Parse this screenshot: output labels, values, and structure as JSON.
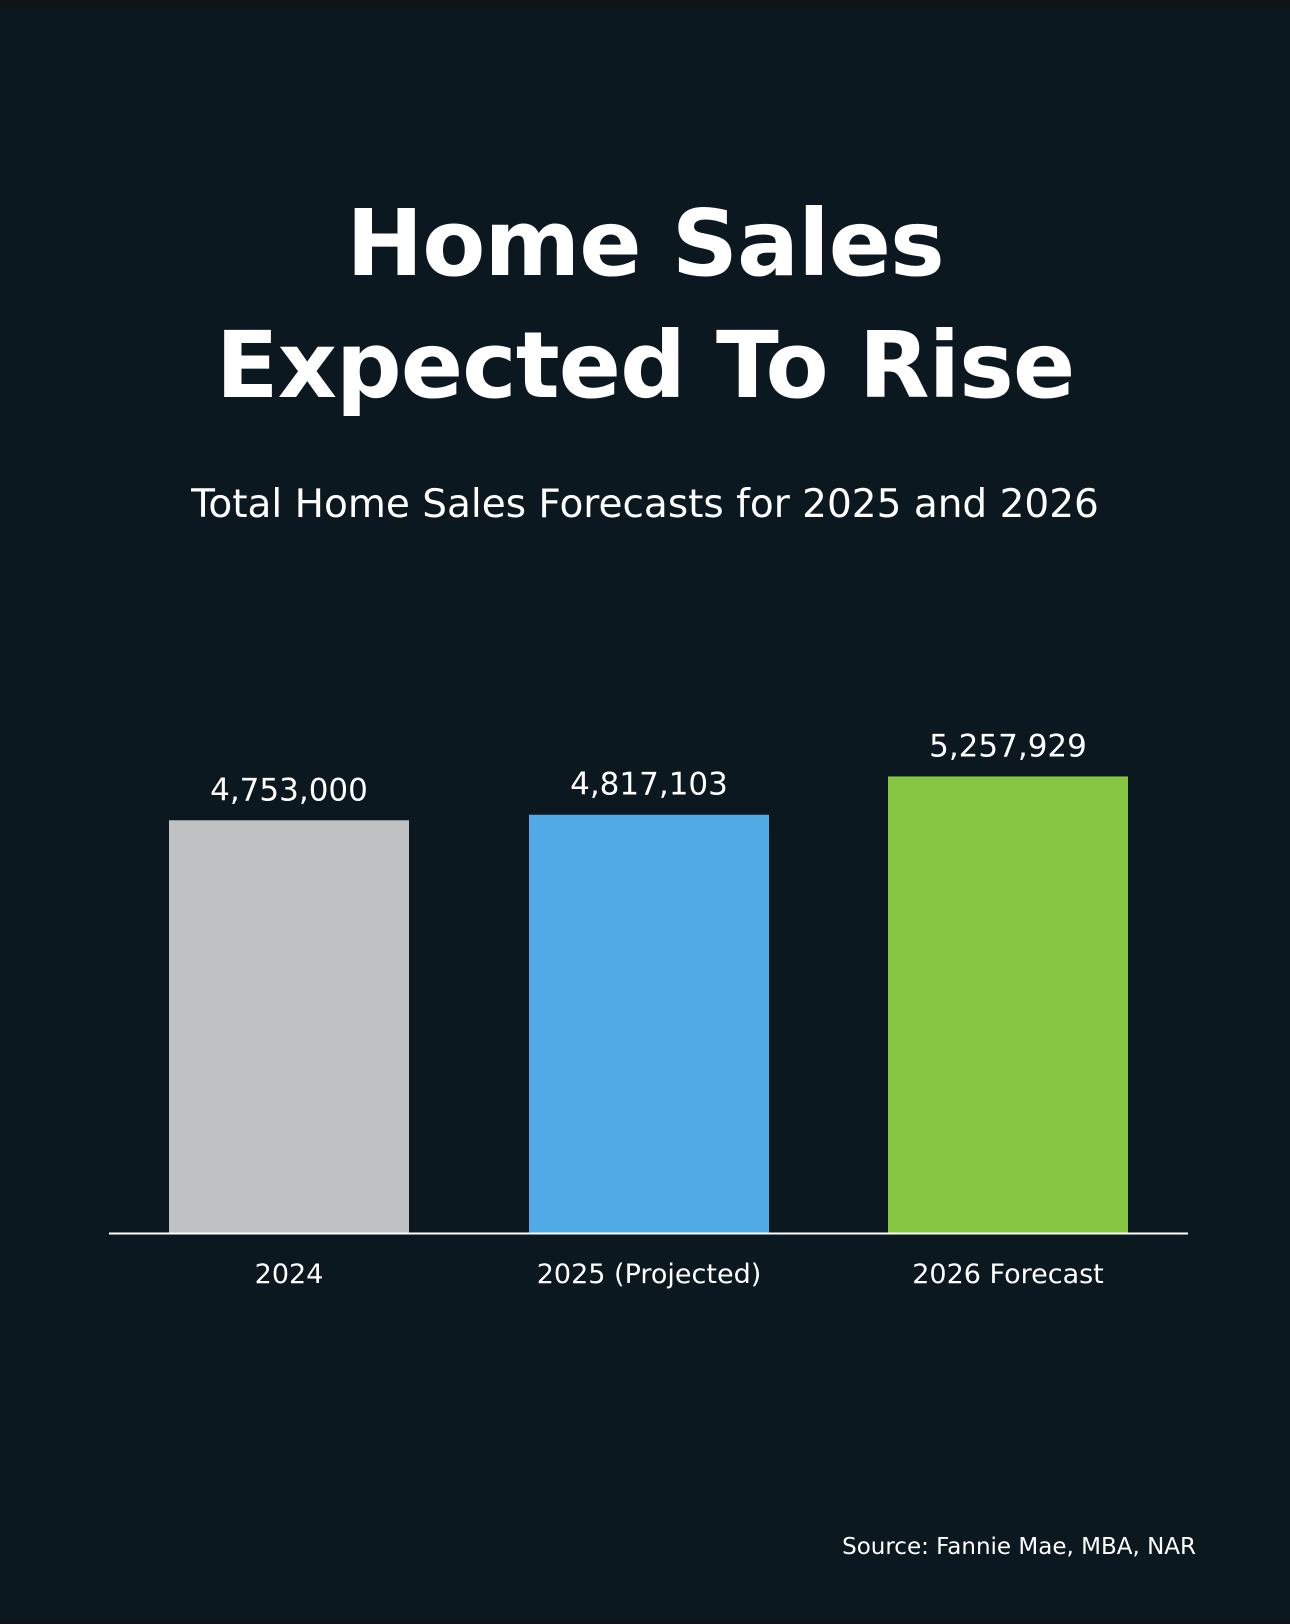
{
  "chart_data": {
    "type": "bar",
    "title": "Home Sales Expected To Rise",
    "title_lines": [
      "Home Sales",
      "Expected To Rise"
    ],
    "subtitle": "Total Home Sales Forecasts for 2025 and 2026",
    "categories": [
      "2024",
      "2025 (Projected)",
      "2026 Forecast"
    ],
    "values": [
      4753000,
      4817103,
      5257929
    ],
    "value_labels": [
      "4,753,000",
      "4,817,103",
      "5,257,929"
    ],
    "colors": [
      "#bfc2c3",
      "#4faae6",
      "#86c642"
    ],
    "xlabel": "",
    "ylabel": "",
    "ylim": [
      0,
      6000000
    ],
    "grid": false,
    "source": "Source: Fannie Mae, MBA, NAR"
  }
}
